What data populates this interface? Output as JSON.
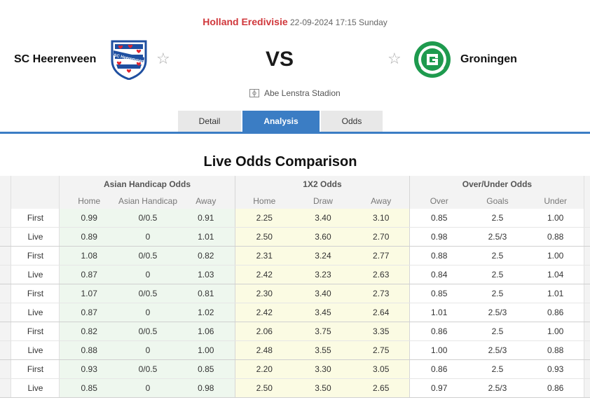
{
  "match": {
    "league": "Holland Eredivisie",
    "datetime": "22-09-2024 17:15 Sunday",
    "home_team": "SC Heerenveen",
    "away_team": "Groningen",
    "vs": "VS",
    "stadium": "Abe Lenstra Stadion",
    "star_glyph": "☆"
  },
  "tabs": [
    {
      "label": "Detail",
      "active": false
    },
    {
      "label": "Analysis",
      "active": true
    },
    {
      "label": "Odds",
      "active": false
    }
  ],
  "colors": {
    "accent": "#3b7dc4",
    "league": "#d0373b",
    "heerenveen_blue": "#1f4fa0",
    "groningen_green": "#1e9a4e"
  },
  "odds_table": {
    "title": "Live Odds Comparison",
    "groups": {
      "asian_handicap": "Asian Handicap Odds",
      "x12": "1X2 Odds",
      "over_under": "Over/Under Odds"
    },
    "subheaders": {
      "ah_home": "Home",
      "ah_line": "Asian Handicap",
      "ah_away": "Away",
      "x12_home": "Home",
      "x12_draw": "Draw",
      "x12_away": "Away",
      "ou_over": "Over",
      "ou_goals": "Goals",
      "ou_under": "Under"
    },
    "rows": [
      {
        "type": "First",
        "ah_home": "0.99",
        "ah_line": "0/0.5",
        "ah_away": "0.91",
        "x12_home": "2.25",
        "x12_draw": "3.40",
        "x12_away": "3.10",
        "ou_over": "0.85",
        "ou_goals": "2.5",
        "ou_under": "1.00"
      },
      {
        "type": "Live",
        "ah_home": "0.89",
        "ah_line": "0",
        "ah_away": "1.01",
        "x12_home": "2.50",
        "x12_draw": "3.60",
        "x12_away": "2.70",
        "ou_over": "0.98",
        "ou_goals": "2.5/3",
        "ou_under": "0.88"
      },
      {
        "type": "First",
        "ah_home": "1.08",
        "ah_line": "0/0.5",
        "ah_away": "0.82",
        "x12_home": "2.31",
        "x12_draw": "3.24",
        "x12_away": "2.77",
        "ou_over": "0.88",
        "ou_goals": "2.5",
        "ou_under": "1.00"
      },
      {
        "type": "Live",
        "ah_home": "0.87",
        "ah_line": "0",
        "ah_away": "1.03",
        "x12_home": "2.42",
        "x12_draw": "3.23",
        "x12_away": "2.63",
        "ou_over": "0.84",
        "ou_goals": "2.5",
        "ou_under": "1.04"
      },
      {
        "type": "First",
        "ah_home": "1.07",
        "ah_line": "0/0.5",
        "ah_away": "0.81",
        "x12_home": "2.30",
        "x12_draw": "3.40",
        "x12_away": "2.73",
        "ou_over": "0.85",
        "ou_goals": "2.5",
        "ou_under": "1.01"
      },
      {
        "type": "Live",
        "ah_home": "0.87",
        "ah_line": "0",
        "ah_away": "1.02",
        "x12_home": "2.42",
        "x12_draw": "3.45",
        "x12_away": "2.64",
        "ou_over": "1.01",
        "ou_goals": "2.5/3",
        "ou_under": "0.86"
      },
      {
        "type": "First",
        "ah_home": "0.82",
        "ah_line": "0/0.5",
        "ah_away": "1.06",
        "x12_home": "2.06",
        "x12_draw": "3.75",
        "x12_away": "3.35",
        "ou_over": "0.86",
        "ou_goals": "2.5",
        "ou_under": "1.00"
      },
      {
        "type": "Live",
        "ah_home": "0.88",
        "ah_line": "0",
        "ah_away": "1.00",
        "x12_home": "2.48",
        "x12_draw": "3.55",
        "x12_away": "2.75",
        "ou_over": "1.00",
        "ou_goals": "2.5/3",
        "ou_under": "0.88"
      },
      {
        "type": "First",
        "ah_home": "0.93",
        "ah_line": "0/0.5",
        "ah_away": "0.85",
        "x12_home": "2.20",
        "x12_draw": "3.30",
        "x12_away": "3.05",
        "ou_over": "0.86",
        "ou_goals": "2.5",
        "ou_under": "0.93"
      },
      {
        "type": "Live",
        "ah_home": "0.85",
        "ah_line": "0",
        "ah_away": "0.98",
        "x12_home": "2.50",
        "x12_draw": "3.50",
        "x12_away": "2.65",
        "ou_over": "0.97",
        "ou_goals": "2.5/3",
        "ou_under": "0.86"
      }
    ]
  }
}
